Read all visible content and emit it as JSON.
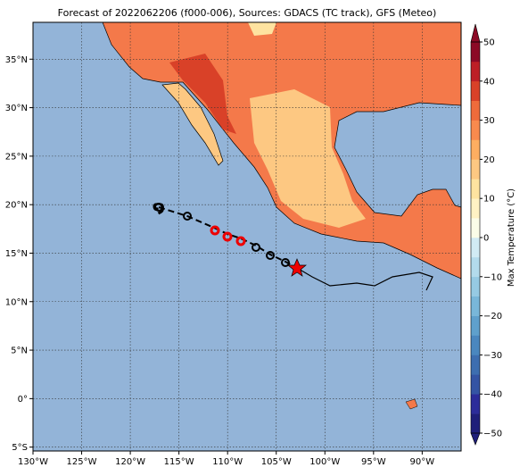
{
  "chart_data": {
    "type": "map",
    "title": "Forecast of 2022062206 (f000-006), Sources: GDACS (TC track), GFS (Meteo)",
    "xlim": [
      -130,
      -86
    ],
    "ylim": [
      -5.4,
      38.8
    ],
    "xticks": [
      {
        "value": -130,
        "label": "130°W"
      },
      {
        "value": -125,
        "label": "125°W"
      },
      {
        "value": -120,
        "label": "120°W"
      },
      {
        "value": -115,
        "label": "115°W"
      },
      {
        "value": -110,
        "label": "110°W"
      },
      {
        "value": -105,
        "label": "105°W"
      },
      {
        "value": -100,
        "label": "100°W"
      },
      {
        "value": -95,
        "label": "95°W"
      },
      {
        "value": -90,
        "label": "90°W"
      }
    ],
    "yticks": [
      {
        "value": -5,
        "label": "5°S"
      },
      {
        "value": 0,
        "label": "0°"
      },
      {
        "value": 5,
        "label": "5°N"
      },
      {
        "value": 10,
        "label": "10°N"
      },
      {
        "value": 15,
        "label": "15°N"
      },
      {
        "value": 20,
        "label": "20°N"
      },
      {
        "value": 25,
        "label": "25°N"
      },
      {
        "value": 30,
        "label": "30°N"
      },
      {
        "value": 35,
        "label": "35°N"
      }
    ],
    "grid": true,
    "colorbar": {
      "label": "Max Temperature (°C)",
      "lim": [
        -50,
        50
      ],
      "ticks": [
        {
          "value": -50,
          "label": "−50"
        },
        {
          "value": -40,
          "label": "−40"
        },
        {
          "value": -30,
          "label": "−30"
        },
        {
          "value": -20,
          "label": "−20"
        },
        {
          "value": -10,
          "label": "−10"
        },
        0,
        10,
        20,
        30,
        40,
        50
      ],
      "colors": [
        "#1f1f7a",
        "#2c2c9a",
        "#3454a4",
        "#3d6eb0",
        "#4a87bf",
        "#5fa0cc",
        "#79b7d9",
        "#96cae3",
        "#b3dbec",
        "#d1ebf4",
        "#fbfde8",
        "#fff2c4",
        "#fee3a0",
        "#fdc882",
        "#fdae61",
        "#f88a4e",
        "#ef6b3b",
        "#d94128",
        "#bd1f26",
        "#8c0a26"
      ]
    }
  }
}
